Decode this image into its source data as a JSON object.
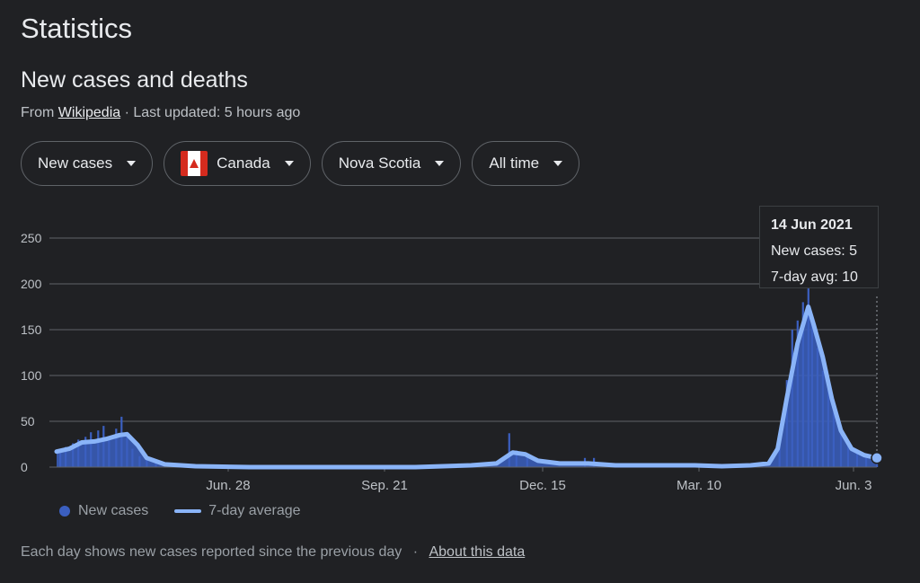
{
  "page": {
    "title": "Statistics",
    "subtitle": "New cases and deaths",
    "source_prefix": "From",
    "source_link": "Wikipedia",
    "updated": "· Last updated: 5 hours ago"
  },
  "filters": [
    {
      "label": "New cases"
    },
    {
      "label": "Canada",
      "flag": "canada-flag-icon"
    },
    {
      "label": "Nova Scotia"
    },
    {
      "label": "All time"
    }
  ],
  "tooltip": {
    "date": "14 Jun 2021",
    "new_cases": "New cases: 5",
    "avg": "7-day avg: 10"
  },
  "legend": {
    "new_cases": "New cases",
    "avg": "7-day average"
  },
  "footer": {
    "text": "Each day shows new cases reported since the previous day",
    "sep": "·",
    "link": "About this data"
  },
  "colors": {
    "bars": "#3b5fc0",
    "line": "#8ab4f8",
    "grid": "#5f6368"
  },
  "chart_data": {
    "type": "bar",
    "title": "",
    "xlabel": "",
    "ylabel": "",
    "ylim": [
      0,
      250
    ],
    "yticks": [
      0,
      50,
      100,
      150,
      200,
      250
    ],
    "x_start": "2020-03-16",
    "x_end": "2021-06-14",
    "xticks": [
      "Jun. 28",
      "Sep. 21",
      "Dec. 15",
      "Mar. 10",
      "Jun. 3"
    ],
    "grid": true,
    "series": [
      {
        "name": "New cases",
        "type": "bar"
      },
      {
        "name": "7-day average",
        "type": "line"
      }
    ],
    "avg_points": [
      [
        "2020-03-16",
        17
      ],
      [
        "2020-03-23",
        20
      ],
      [
        "2020-03-30",
        27
      ],
      [
        "2020-04-06",
        28
      ],
      [
        "2020-04-13",
        31
      ],
      [
        "2020-04-20",
        35
      ],
      [
        "2020-04-24",
        36
      ],
      [
        "2020-04-30",
        24
      ],
      [
        "2020-05-05",
        10
      ],
      [
        "2020-05-15",
        3
      ],
      [
        "2020-06-01",
        1
      ],
      [
        "2020-07-01",
        0
      ],
      [
        "2020-10-01",
        0
      ],
      [
        "2020-11-01",
        2
      ],
      [
        "2020-11-15",
        4
      ],
      [
        "2020-11-24",
        16
      ],
      [
        "2020-12-01",
        14
      ],
      [
        "2020-12-08",
        7
      ],
      [
        "2020-12-20",
        4
      ],
      [
        "2021-01-05",
        4
      ],
      [
        "2021-01-20",
        2
      ],
      [
        "2021-02-20",
        2
      ],
      [
        "2021-03-05",
        2
      ],
      [
        "2021-03-20",
        1
      ],
      [
        "2021-04-05",
        2
      ],
      [
        "2021-04-15",
        4
      ],
      [
        "2021-04-20",
        20
      ],
      [
        "2021-04-25",
        75
      ],
      [
        "2021-05-01",
        135
      ],
      [
        "2021-05-07",
        175
      ],
      [
        "2021-05-10",
        155
      ],
      [
        "2021-05-15",
        120
      ],
      [
        "2021-05-20",
        75
      ],
      [
        "2021-05-25",
        40
      ],
      [
        "2021-05-31",
        20
      ],
      [
        "2021-06-07",
        13
      ],
      [
        "2021-06-14",
        10
      ]
    ],
    "bars": [
      [
        "2020-03-18",
        18
      ],
      [
        "2020-03-21",
        22
      ],
      [
        "2020-03-25",
        26
      ],
      [
        "2020-03-28",
        30
      ],
      [
        "2020-04-01",
        33
      ],
      [
        "2020-04-04",
        38
      ],
      [
        "2020-04-08",
        40
      ],
      [
        "2020-04-11",
        45
      ],
      [
        "2020-04-14",
        30
      ],
      [
        "2020-04-18",
        42
      ],
      [
        "2020-04-21",
        55
      ],
      [
        "2020-04-24",
        35
      ],
      [
        "2020-04-27",
        20
      ],
      [
        "2020-05-01",
        12
      ],
      [
        "2020-05-05",
        8
      ],
      [
        "2020-05-10",
        5
      ],
      [
        "2020-11-22",
        37
      ],
      [
        "2020-11-26",
        18
      ],
      [
        "2020-12-02",
        12
      ],
      [
        "2021-01-03",
        10
      ],
      [
        "2021-01-08",
        10
      ],
      [
        "2021-04-21",
        30
      ],
      [
        "2021-04-25",
        95
      ],
      [
        "2021-04-28",
        150
      ],
      [
        "2021-05-01",
        160
      ],
      [
        "2021-05-04",
        180
      ],
      [
        "2021-05-07",
        195
      ],
      [
        "2021-05-09",
        165
      ],
      [
        "2021-05-12",
        130
      ],
      [
        "2021-05-15",
        105
      ],
      [
        "2021-05-18",
        85
      ],
      [
        "2021-05-21",
        60
      ],
      [
        "2021-05-25",
        40
      ],
      [
        "2021-05-29",
        25
      ],
      [
        "2021-06-03",
        15
      ],
      [
        "2021-06-08",
        10
      ],
      [
        "2021-06-14",
        5
      ]
    ]
  }
}
